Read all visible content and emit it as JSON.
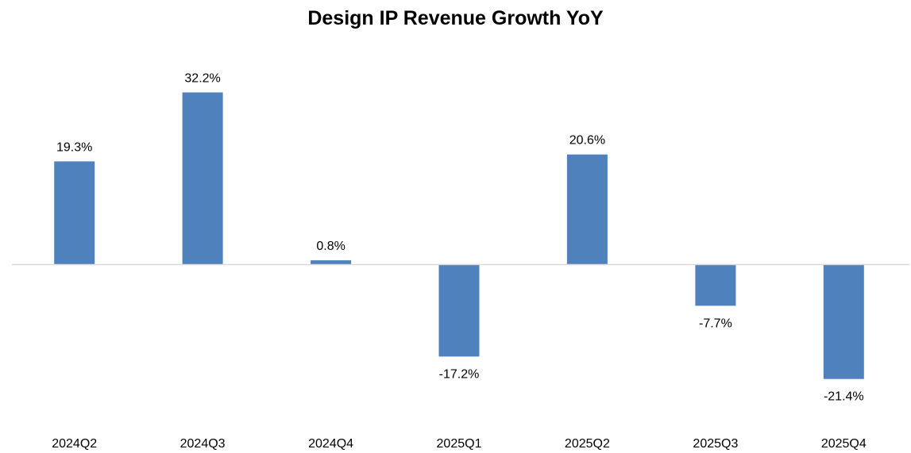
{
  "chart_data": {
    "type": "bar",
    "title": "Design IP Revenue Growth YoY",
    "xlabel": "",
    "ylabel": "",
    "categories": [
      "2024Q2",
      "2024Q3",
      "2024Q4",
      "2025Q1",
      "2025Q2",
      "2025Q3",
      "2025Q4"
    ],
    "values": [
      19.3,
      32.2,
      0.8,
      -17.2,
      20.6,
      -7.7,
      -21.4
    ],
    "data_labels": [
      "19.3%",
      "32.2%",
      "0.8%",
      "-17.2%",
      "20.6%",
      "-7.7%",
      "-21.4%"
    ],
    "unit": "%",
    "ylim": [
      -30,
      45
    ],
    "grid": false,
    "legend": "none",
    "colors": {
      "bar": "#4F81BD",
      "axis": "#D9D9D9",
      "text": "#000000"
    }
  }
}
